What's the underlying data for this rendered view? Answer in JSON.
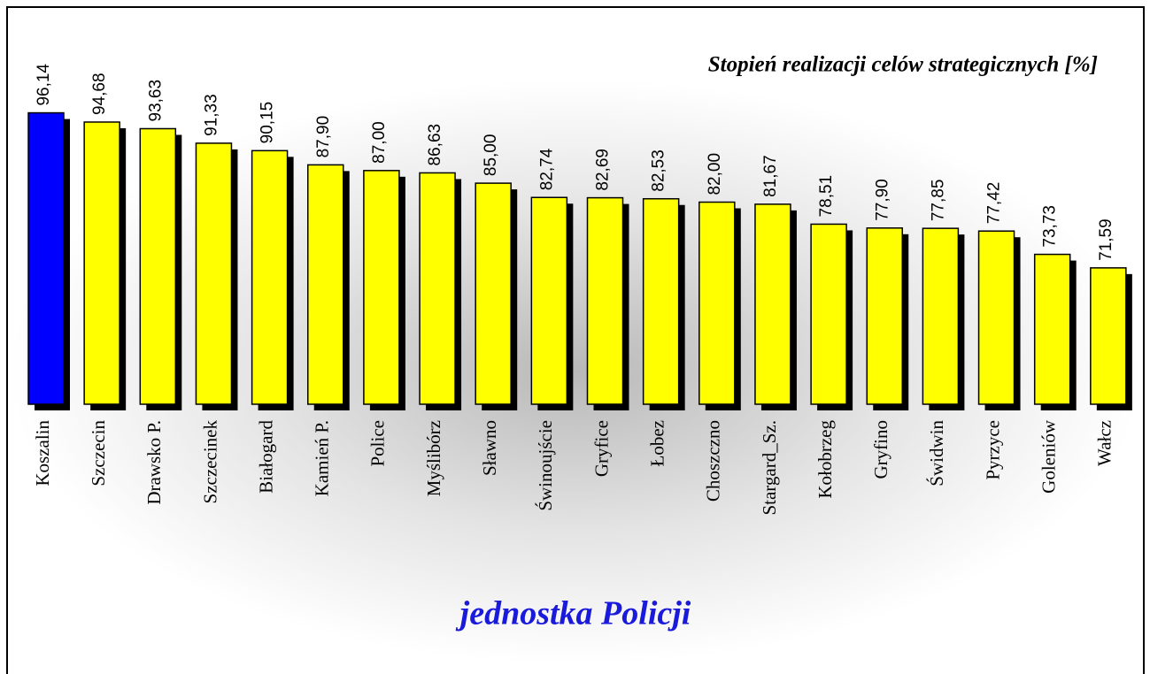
{
  "chart_data": {
    "type": "bar",
    "title": "Stopień realizacji celów strategicznych [%]",
    "x_label": "jednostka Policji",
    "categories": [
      "Koszalin",
      "Szczecin",
      "Drawsko P.",
      "Szczecinek",
      "Białogard",
      "Kamień P.",
      "Police",
      "Myślibórz",
      "Sławno",
      "Świnoujście",
      "Gryfice",
      "Łobez",
      "Choszczno",
      "Stargard_Sz.",
      "Kołobrzeg",
      "Gryfino",
      "Świdwin",
      "Pyrzyce",
      "Goleniów",
      "Wałcz"
    ],
    "values": [
      96.14,
      94.68,
      93.63,
      91.33,
      90.15,
      87.9,
      87.0,
      86.63,
      85.0,
      82.74,
      82.69,
      82.53,
      82.0,
      81.67,
      78.51,
      77.9,
      77.85,
      77.42,
      73.73,
      71.59
    ],
    "value_labels": [
      "96,14",
      "94,68",
      "93,63",
      "91,33",
      "90,15",
      "87,90",
      "87,00",
      "86,63",
      "85,00",
      "82,74",
      "82,69",
      "82,53",
      "82,00",
      "81,67",
      "78,51",
      "77,90",
      "77,85",
      "77,42",
      "73,73",
      "71,59"
    ],
    "colors": [
      "#0000ff",
      "#ffff00",
      "#ffff00",
      "#ffff00",
      "#ffff00",
      "#ffff00",
      "#ffff00",
      "#ffff00",
      "#ffff00",
      "#ffff00",
      "#ffff00",
      "#ffff00",
      "#ffff00",
      "#ffff00",
      "#ffff00",
      "#ffff00",
      "#ffff00",
      "#ffff00",
      "#ffff00",
      "#ffff00"
    ],
    "ylim": [
      50,
      100
    ]
  }
}
